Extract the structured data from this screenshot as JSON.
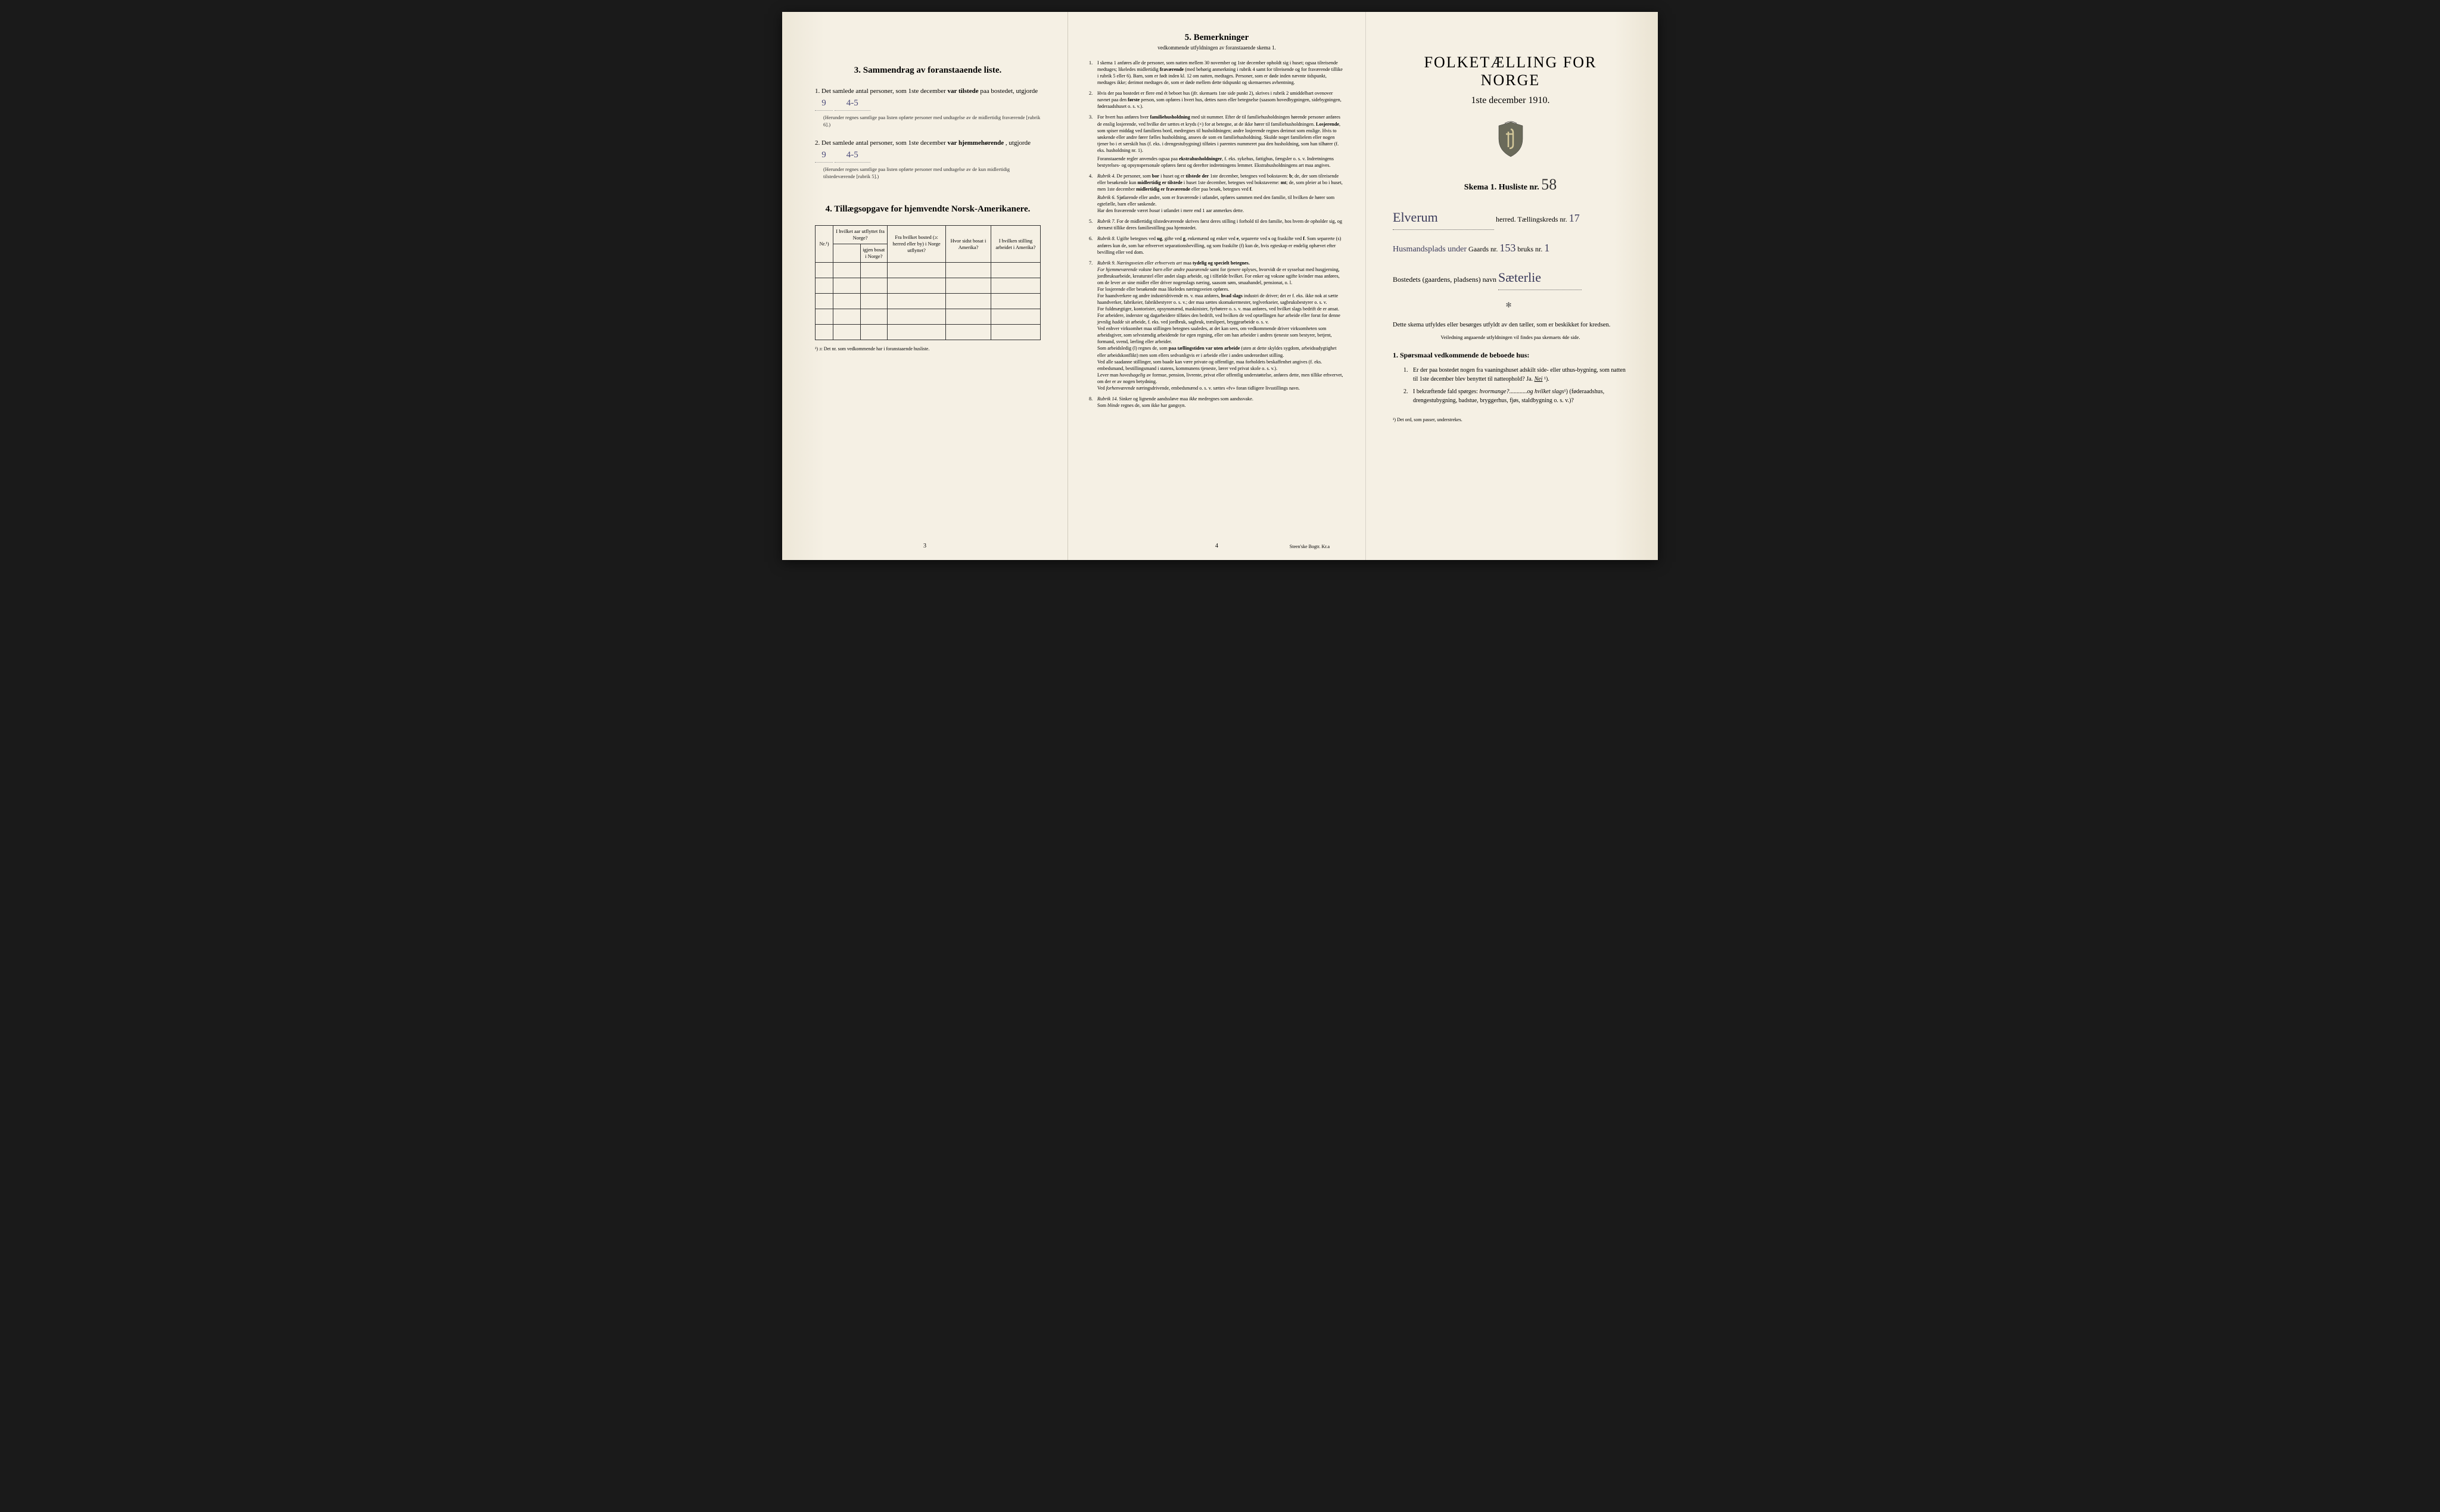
{
  "page1": {
    "section3_title": "3.   Sammendrag av foranstaaende liste.",
    "q1_prefix": "1.  Det samlede antal personer, som 1ste december",
    "q1_bold": "var tilstede",
    "q1_suffix": "paa bostedet, utgjorde",
    "q1_value": "9",
    "q1_value2": "4-5",
    "q1_note": "(Herunder regnes samtlige paa listen opførte personer med undtagelse av de midlertidig fraværende [rubrik 6].)",
    "q2_prefix": "2.  Det samlede antal personer, som 1ste december",
    "q2_bold": "var hjemmehørende",
    "q2_suffix": ", utgjorde",
    "q2_value": "9",
    "q2_value2": "4-5",
    "q2_note": "(Herunder regnes samtlige paa listen opførte personer med undtagelse av de kun midlertidig tilstedeværende [rubrik 5].)",
    "section4_title": "4.  Tillægsopgave for hjemvendte Norsk-Amerikanere.",
    "col1": "Nr.¹)",
    "col2": "I hvilket aar utflyttet fra Norge?",
    "col3": "Fra hvilket bosted (ɔ: herred eller by) i Norge utflyttet?",
    "col3_sub": "igjen bosat i Norge?",
    "col4": "Hvor sidst bosat i Amerika?",
    "col5": "I hvilken stilling arbeidet i Amerika?",
    "footnote": "¹) ɔ: Det nr. som vedkommende har i foranstaaende husliste.",
    "page_num": "3"
  },
  "page2": {
    "title": "5.   Bemerkninger",
    "subtitle": "vedkommende utfyldningen av foranstaaende skema 1.",
    "remarks": [
      {
        "n": "1.",
        "t": "I skema 1 anføres alle de personer, som natten mellem 30 november og 1ste december opholdt sig i huset; ogsaa tilreisende medtages; likeledes midlertidig <b>fraværende</b> (med behørig anmerkning i rubrik 4 samt for tilreisende og for fraværende tillike i rubrik 5 eller 6). Barn, som er født inden kl. 12 om natten, medtages. Personer, som er døde inden nævnte tidspunkt, medtages ikke; derimot medtages de, som er døde mellem dette tidspunkt og skemaernes avhentning."
      },
      {
        "n": "2.",
        "t": "Hvis der paa bostedet er flere end ét beboet hus (jfr. skemaets 1ste side punkt 2), skrives i rubrik 2 umiddelbart ovenover navnet paa den <b>første</b> person, som opføres i hvert hus, dettes navn eller betegnelse (saasom hovedbygningen, sidebygningen, føderaadshuset o. s. v.)."
      },
      {
        "n": "3.",
        "t": "For hvert hus anføres hver <b>familiehusholdning</b> med sit nummer. Efter de til familiehusholdningen hørende personer anføres de enslig losjerende, ved hvilke der sættes et kryds (×) for at betegne, at de ikke hører til familiehusholdningen. <b>Losjerende</b>, som spiser middag ved familiens bord, medregnes til husholdningen; andre losjerende regnes derimot som enslige. Hvis to søskende eller andre fører fælles husholdning, ansees de som en familiehusholdning. Skulde noget familielem eller nogen tjener bo i et særskilt hus (f. eks. i drengestubygning) tilføies i parentes nummeret paa den husholdning, som han tilhører (f. eks. husholdning nr. 1).",
        "sub": "Foranstaaende regler anvendes ogsaa paa <b>ekstrahusholdninger</b>, f. eks. sykehus, fattighus, fængsler o. s. v. Indretningens bestyrelses- og opsynspersonale opføres først og derefter indretningens lemmer. Ekstrahusholdningens art maa angives."
      },
      {
        "n": "4.",
        "t": "<i>Rubrik 4.</i> De personer, som <b>bor</b> i huset og er <b>tilstede der</b> 1ste december, betegnes ved bokstaven: <b>b</b>; de, der som tilreisende eller besøkende kun <b>midlertidig er tilstede</b> i huset 1ste december, betegnes ved bokstaverne: <b>mt</b>; de, som pleier at bo i huset, men 1ste december <b>midlertidig er fraværende</b> eller paa besøk, betegnes ved <b>f</b>.",
        "sub": "<i>Rubrik 6.</i> Sjøfarende eller andre, som er fraværende i utlandet, opføres sammen med den familie, til hvilken de hører som egtefælle, barn eller søskende.<br>Har den fraværende været <i>bosat</i> i utlandet i mere end 1 aar anmerkes dette."
      },
      {
        "n": "5.",
        "t": "<i>Rubrik 7.</i> For de midlertidig tilstedeværende skrives først deres stilling i forhold til den familie, hos hvem de opholder sig, og dernæst tillike deres familiestilling paa hjemstedet."
      },
      {
        "n": "6.",
        "t": "<i>Rubrik 8.</i> Ugifte betegnes ved <b>ug</b>, gifte ved <b>g</b>, enkemænd og enker ved <b>e</b>, separerte ved <b>s</b> og fraskilte ved <b>f</b>. Som separerte (s) anføres kun de, som har erhvervet separationsbevilling, og som fraskilte (f) kun de, hvis egteskap er endelig ophævet efter bevilling eller ved dom."
      },
      {
        "n": "7.",
        "t": "<i>Rubrik 9. Næringsveien eller erhvervets art</i> maa <b>tydelig og specielt betegnes.</b><br><i>For hjemmeværende voksne barn eller andre paarørende</i> samt for <i>tjenere</i> oplyses, hvorvidt de er sysselsat med husgjerning, jordbruksarbeide, kreaturstel eller andet slags arbeide, og i tilfælde hvilket. For enker og voksne ugifte kvinder maa anføres, om de lever av sine midler eller driver nogenslags næring, saasom søm, smaahandel, pensionat, o. l.<br>For losjerende eller besøkende maa likeledes næringsveien opføres.<br>For haandverkere og andre industridrivende m. v. maa anføres, <b>hvad slags</b> industri de driver; det er f. eks. ikke nok at sætte haandverker, fabrikeier, fabrikbestyrer o. s. v.; der maa sættes skomakermester, teglverkseier, sagbruksbestyrer o. s. v.<br>For fuldmægtiger, kontorister, opsynsmænd, maskinister, fyrbøtere o. s. v. maa anføres, ved hvilket slags bedrift de er ansat.<br>For arbeidere, inderster og dagarbeidere tilføies den bedrift, ved hvilken de ved optællingen <i>har</i> arbeide eller forut for denne jevnlig <i>hadde</i> sit arbeide, f. eks. ved jordbruk, sagbruk, træsliperi, bryggearbeide o. s. v.<br>Ved enhver virksomhet maa stillingen betegnes saaledes, at det kan sees, om vedkommende driver virksomheten som arbeidsgiver, som selvstændig arbeidende for egen regning, eller om han arbeider i andres tjeneste som bestyrer, betjent, formand, svend, lærling eller arbeider.<br>Som arbeidsledig (l) regnes de, som <b>paa tællingstiden var uten arbeide</b> (uten at dette skyldes sygdom, arbeidsudygtighet eller arbeidskonflikt) men som ellers sedvanligvis er i arbeide eller i anden underordnet stilling.<br>Ved alle saadanne stillinger, som baade kan være private og offentlige, maa forholdets beskaffenhet angives (f. eks. embedsmand, bestillingsmand i statens, kommunens tjeneste, lærer ved privat skole o. s. v.).<br>Lever man <i>hovedsagelig</i> av formue, pension, livrente, privat eller offentlig understøttelse, anføres dette, men tillike erhvervet, om der er av nogen betydning.<br>Ved <i>forhenværende</i> næringsdrivende, embedsmænd o. s. v. sættes «fv» foran tidligere livsstillings navn."
      },
      {
        "n": "8.",
        "t": "<i>Rubrik 14.</i> Sinker og lignende aandssløve maa <i>ikke</i> medregnes som aandssvake.<br>Som <i>blinde</i> regnes de, som ikke har gangsyn."
      }
    ],
    "page_num": "4",
    "printer": "Steen'ske Bogtr.  Kr.a"
  },
  "page3": {
    "main_title": "FOLKETÆLLING FOR NORGE",
    "main_date": "1ste december 1910.",
    "skema_label": "Skema 1.  Husliste nr.",
    "husliste_nr": "58",
    "herred_value": "Elverum",
    "herred_label": "herred.  Tællingskreds nr.",
    "kreds_nr": "17",
    "line2_value": "Husmandsplads under",
    "gaards_label": "Gaards nr.",
    "gaards_nr": "153",
    "bruks_label": "bruks nr.",
    "bruks_nr": "1",
    "bosted_label": "Bostedets (gaardens, pladsens) navn",
    "bosted_value": "Sæterlie",
    "instruct": "Dette skema utfyldes eller besørges utfyldt av den tæller, som er beskikket for kredsen.",
    "instruct_small": "Veiledning angaaende utfyldningen vil findes paa skemaets 4de side.",
    "sporsmaal_title": "1. Spørsmaal vedkommende de beboede hus:",
    "sp1_n": "1.",
    "sp1": "Er der paa bostedet nogen fra vaaningshuset adskilt side- eller uthus-bygning, som natten til 1ste december blev benyttet til natteophold?    Ja.    ",
    "sp1_ans": "Nei",
    "sp1_sup": "¹).",
    "sp2_n": "2.",
    "sp2": "I bekræftende fald spørges: <i>hvormange?</i>............<i>og hvilket slags</i>¹) (føderaadshus, drengestubygning, badstue, bryggerhus, fjøs, staldbygning o. s. v.)?",
    "footnote": "¹) Det ord, som passer, understrekes."
  }
}
